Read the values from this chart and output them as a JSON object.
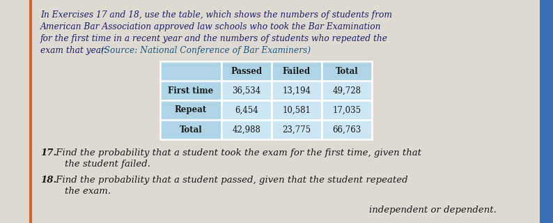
{
  "page_bg": "#dedad2",
  "paragraph_line1": "In Exercises 17 and 18, use the table, which shows the numbers of students from",
  "paragraph_line2": "American Bar Association approved law schools who took the Bar Examination",
  "paragraph_line3": "for the first time in a recent year and the numbers of students who repeated the",
  "paragraph_line4": "exam that year.",
  "source_text": " (Source: National Conference of Bar Examiners)",
  "paragraph_color": "#1e1e6e",
  "source_color": "#1a5c8a",
  "col_headers": [
    "Passed",
    "Failed",
    "Total"
  ],
  "row_headers": [
    "First time",
    "Repeat",
    "Total"
  ],
  "table_data": [
    [
      "36,534",
      "13,194",
      "49,728"
    ],
    [
      "6,454",
      "10,581",
      "17,035"
    ],
    [
      "42,988",
      "23,775",
      "66,763"
    ]
  ],
  "header_bg": "#aed4e6",
  "row_bg": "#cce6f4",
  "cell_text_color": "#1a1a1a",
  "p17_number": "17.",
  "p17_text": " Find the probability that a student took the exam for the first time, given that",
  "p17_text2": "    the student failed.",
  "p18_number": "18.",
  "p18_text": " Find the probability that a student passed, given that the student repeated",
  "p18_text2": "    the exam.",
  "footer_text": "independent or dependent.",
  "orange_line_color": "#d4622a",
  "blue_bar_color": "#3a6eb5"
}
